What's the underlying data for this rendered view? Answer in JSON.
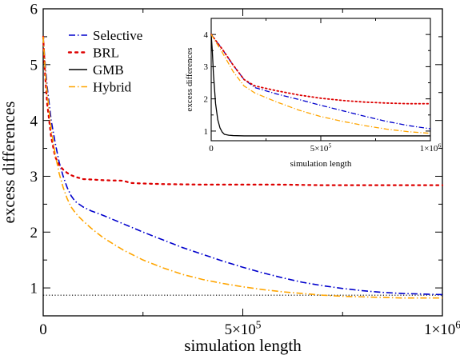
{
  "chart_data": [
    {
      "type": "line",
      "title": "",
      "xlabel": "simulation length",
      "ylabel": "excess differences",
      "xlim": [
        0,
        1000000
      ],
      "ylim": [
        0.5,
        6
      ],
      "grid": false,
      "legend_position": "top-left",
      "x_ticks": [
        {
          "value": 0,
          "base": "0",
          "exp": ""
        },
        {
          "value": 500000,
          "base": "5×10",
          "exp": "5"
        },
        {
          "value": 1000000,
          "base": "1×10",
          "exp": "6"
        }
      ],
      "y_ticks": [
        {
          "value": 1,
          "label": "1"
        },
        {
          "value": 2,
          "label": "2"
        },
        {
          "value": 3,
          "label": "3"
        },
        {
          "value": 4,
          "label": "4"
        },
        {
          "value": 5,
          "label": "5"
        },
        {
          "value": 6,
          "label": "6"
        }
      ],
      "reference_line": {
        "y": 0.87,
        "color": "#000000",
        "style": "dotted"
      },
      "series": [
        {
          "name": "Selective",
          "color": "#0000cc",
          "style": "dashdot",
          "x": [
            0,
            5000,
            10000,
            20000,
            30000,
            40000,
            50000,
            60000,
            70000,
            80000,
            90000,
            100000,
            120000,
            150000,
            200000,
            250000,
            300000,
            350000,
            400000,
            450000,
            500000,
            550000,
            600000,
            650000,
            700000,
            750000,
            800000,
            850000,
            900000,
            950000,
            1000000
          ],
          "y": [
            5.5,
            5.0,
            4.6,
            4.0,
            3.6,
            3.25,
            3.0,
            2.8,
            2.65,
            2.55,
            2.5,
            2.45,
            2.38,
            2.3,
            2.15,
            2.0,
            1.86,
            1.72,
            1.6,
            1.48,
            1.37,
            1.27,
            1.18,
            1.1,
            1.04,
            0.99,
            0.95,
            0.92,
            0.9,
            0.89,
            0.88
          ]
        },
        {
          "name": "BRL",
          "color": "#dd0000",
          "style": "dotted",
          "x": [
            0,
            5000,
            10000,
            20000,
            30000,
            40000,
            50000,
            60000,
            70000,
            80000,
            90000,
            100000,
            150000,
            200000,
            210000,
            220000,
            250000,
            300000,
            400000,
            500000,
            600000,
            700000,
            800000,
            900000,
            1000000
          ],
          "y": [
            5.5,
            4.8,
            4.3,
            3.7,
            3.35,
            3.2,
            3.12,
            3.06,
            3.02,
            2.99,
            2.97,
            2.95,
            2.93,
            2.92,
            2.9,
            2.88,
            2.87,
            2.86,
            2.85,
            2.85,
            2.85,
            2.84,
            2.84,
            2.84,
            2.84
          ]
        },
        {
          "name": "Hybrid",
          "color": "#ffa500",
          "style": "dashdot",
          "x": [
            0,
            5000,
            10000,
            20000,
            30000,
            40000,
            50000,
            60000,
            70000,
            80000,
            90000,
            100000,
            120000,
            150000,
            200000,
            250000,
            300000,
            350000,
            400000,
            450000,
            500000,
            550000,
            600000,
            650000,
            700000,
            750000,
            800000,
            850000,
            900000,
            950000,
            1000000
          ],
          "y": [
            5.5,
            4.9,
            4.5,
            3.85,
            3.4,
            3.05,
            2.8,
            2.6,
            2.45,
            2.35,
            2.27,
            2.2,
            2.07,
            1.9,
            1.68,
            1.5,
            1.36,
            1.24,
            1.15,
            1.08,
            1.02,
            0.97,
            0.93,
            0.9,
            0.87,
            0.85,
            0.84,
            0.83,
            0.82,
            0.82,
            0.82
          ]
        }
      ]
    },
    {
      "type": "line",
      "title": "",
      "xlabel": "simulation length",
      "ylabel": "excess differences",
      "xlim": [
        0,
        1000000
      ],
      "ylim": [
        0.7,
        4.5
      ],
      "grid": false,
      "legend_position": "none",
      "x_ticks": [
        {
          "value": 0,
          "base": "0",
          "exp": ""
        },
        {
          "value": 500000,
          "base": "5×10",
          "exp": "5"
        },
        {
          "value": 1000000,
          "base": "1×10",
          "exp": "6"
        }
      ],
      "y_ticks": [
        {
          "value": 1,
          "label": "1"
        },
        {
          "value": 2,
          "label": "2"
        },
        {
          "value": 3,
          "label": "3"
        },
        {
          "value": 4,
          "label": "4"
        }
      ],
      "series": [
        {
          "name": "Selective",
          "color": "#0000cc",
          "style": "dashdot",
          "x": [
            0,
            50000,
            100000,
            150000,
            200000,
            300000,
            400000,
            500000,
            600000,
            700000,
            800000,
            900000,
            1000000
          ],
          "y": [
            4.0,
            3.55,
            3.05,
            2.6,
            2.35,
            2.15,
            1.98,
            1.8,
            1.63,
            1.46,
            1.3,
            1.17,
            1.07
          ]
        },
        {
          "name": "BRL",
          "color": "#dd0000",
          "style": "dotted",
          "x": [
            0,
            50000,
            100000,
            150000,
            200000,
            300000,
            400000,
            500000,
            600000,
            700000,
            800000,
            900000,
            1000000
          ],
          "y": [
            4.0,
            3.55,
            3.05,
            2.6,
            2.4,
            2.25,
            2.12,
            2.02,
            1.95,
            1.9,
            1.87,
            1.85,
            1.85
          ]
        },
        {
          "name": "GMB",
          "color": "#000000",
          "style": "solid",
          "x": [
            0,
            5000,
            10000,
            20000,
            30000,
            40000,
            50000,
            60000,
            80000,
            100000,
            150000,
            1000000
          ],
          "y": [
            4.0,
            3.5,
            2.8,
            1.85,
            1.35,
            1.1,
            0.97,
            0.9,
            0.87,
            0.86,
            0.85,
            0.85
          ]
        },
        {
          "name": "Hybrid",
          "color": "#ffa500",
          "style": "dashdot",
          "x": [
            0,
            50000,
            100000,
            150000,
            200000,
            300000,
            400000,
            500000,
            600000,
            700000,
            800000,
            900000,
            1000000
          ],
          "y": [
            4.0,
            3.45,
            2.85,
            2.4,
            2.18,
            1.9,
            1.65,
            1.45,
            1.3,
            1.17,
            1.06,
            0.98,
            0.93
          ]
        }
      ]
    }
  ],
  "legend": {
    "entries": [
      {
        "label": "Selective",
        "color": "#0000cc",
        "style": "dashdot"
      },
      {
        "label": "BRL",
        "color": "#dd0000",
        "style": "dotted"
      },
      {
        "label": "GMB",
        "color": "#000000",
        "style": "solid"
      },
      {
        "label": "Hybrid",
        "color": "#ffa500",
        "style": "dashdot"
      }
    ]
  }
}
